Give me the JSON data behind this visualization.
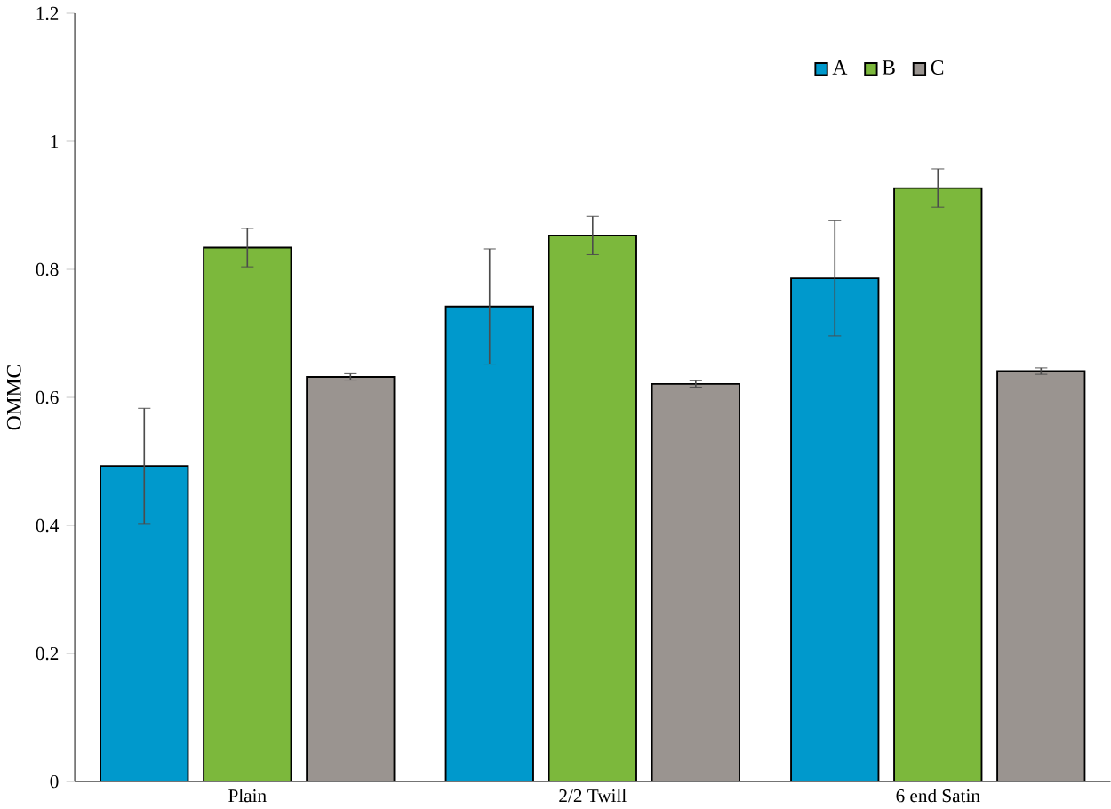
{
  "chart_data": {
    "type": "bar",
    "ylabel": "OMMC",
    "categories": [
      "Plain",
      "2/2 Twill",
      "6 end Satin"
    ],
    "series": [
      {
        "name": "A",
        "color": "#0099cc",
        "values": [
          0.493,
          0.742,
          0.786
        ],
        "errors": [
          0.09,
          0.09,
          0.09
        ]
      },
      {
        "name": "B",
        "color": "#7cb83c",
        "values": [
          0.834,
          0.853,
          0.927
        ],
        "errors": [
          0.03,
          0.03,
          0.03
        ]
      },
      {
        "name": "C",
        "color": "#9a9490",
        "values": [
          0.632,
          0.621,
          0.641
        ],
        "errors": [
          0.005,
          0.005,
          0.005
        ]
      }
    ],
    "ylim": [
      0,
      1.2
    ],
    "yticks": [
      0,
      0.2,
      0.4,
      0.6,
      0.8,
      1,
      1.2
    ],
    "grid": false,
    "legend": "top right"
  }
}
